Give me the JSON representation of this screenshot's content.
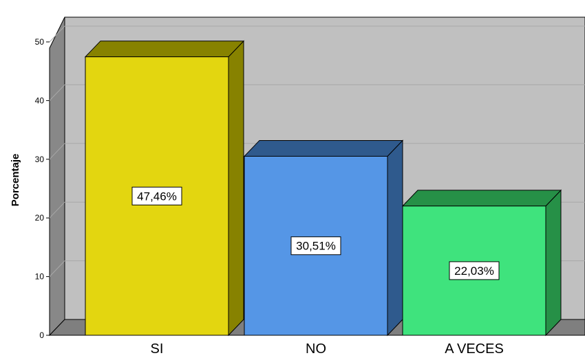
{
  "chart_data": {
    "type": "bar",
    "style": "3d",
    "categories": [
      "SI",
      "NO",
      "A VECES"
    ],
    "values": [
      47.46,
      30.51,
      22.03
    ],
    "data_labels": [
      "47,46%",
      "30,51%",
      "22,03%"
    ],
    "ylabel": "Porcentaje",
    "ylim": [
      0,
      50
    ],
    "yticks": [
      0,
      10,
      20,
      30,
      40,
      50
    ],
    "grid": true,
    "legend": "none",
    "colors": {
      "bars": [
        "#e3d610",
        "#5596e6",
        "#3fe37d"
      ],
      "bar_tops": [
        "#878200",
        "#2f5a8d",
        "#269047"
      ],
      "bar_sides": [
        "#878200",
        "#2f5a8d",
        "#269047"
      ],
      "wall": "#c0c0c0",
      "side_wall": "#888888",
      "floor": "#7f7f7f",
      "gridline": "#a8a8a8"
    }
  }
}
